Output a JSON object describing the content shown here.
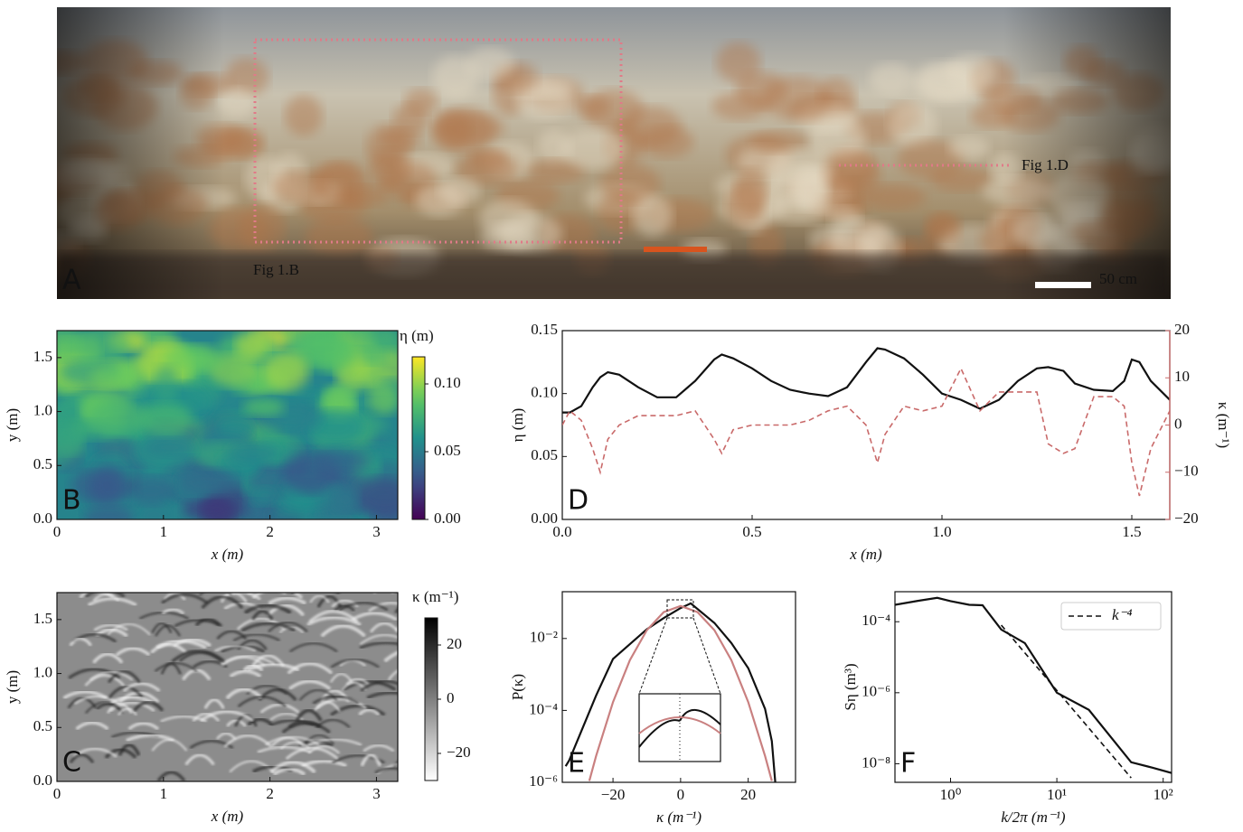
{
  "chart_data": [
    {
      "type": "image",
      "panel_label": "A",
      "annotations": [
        "Fig 1.B",
        "Fig 1.D"
      ],
      "scale_bar": "50 cm"
    },
    {
      "type": "heatmap",
      "panel_label": "B",
      "xlabel": "x (m)",
      "ylabel": "y (m)",
      "xlim": [
        0,
        3.2
      ],
      "ylim": [
        0,
        1.75
      ],
      "xticks": [
        0,
        1,
        2,
        3
      ],
      "yticks": [
        {
          "value": 0,
          "label": "0.0"
        },
        {
          "value": 0.5,
          "label": "0.5"
        },
        {
          "value": 1,
          "label": "1.0"
        },
        {
          "value": 1.5,
          "label": "1.5"
        }
      ],
      "colormap": "viridis",
      "colorbar": {
        "label": "η (m)",
        "lim": [
          0,
          0.12
        ],
        "ticks": [
          {
            "value": 0,
            "label": "0.00"
          },
          {
            "value": 0.05,
            "label": "0.05"
          },
          {
            "value": 0.1,
            "label": "0.10"
          }
        ]
      }
    },
    {
      "type": "line",
      "panel_label": "D",
      "xlabel": "x (m)",
      "ylabel": "η (m)",
      "y2label": "κ (m⁻¹)",
      "xlim": [
        0,
        1.6
      ],
      "ylim": [
        0,
        0.15
      ],
      "y2lim": [
        -20,
        20
      ],
      "xticks": [
        {
          "value": 0,
          "label": "0.0"
        },
        {
          "value": 0.5,
          "label": "0.5"
        },
        {
          "value": 1,
          "label": "1.0"
        },
        {
          "value": 1.5,
          "label": "1.5"
        }
      ],
      "yticks": [
        {
          "value": 0,
          "label": "0.00"
        },
        {
          "value": 0.05,
          "label": "0.05"
        },
        {
          "value": 0.1,
          "label": "0.10"
        },
        {
          "value": 0.15,
          "label": "0.15"
        }
      ],
      "y2ticks": [
        {
          "value": -20,
          "label": "−20"
        },
        {
          "value": -10,
          "label": "−10"
        },
        0,
        10,
        20
      ],
      "x": [
        0,
        0.02,
        0.05,
        0.08,
        0.1,
        0.12,
        0.15,
        0.2,
        0.25,
        0.3,
        0.35,
        0.4,
        0.42,
        0.45,
        0.5,
        0.55,
        0.6,
        0.65,
        0.7,
        0.75,
        0.8,
        0.83,
        0.85,
        0.9,
        0.95,
        1.0,
        1.05,
        1.1,
        1.15,
        1.2,
        1.25,
        1.28,
        1.32,
        1.35,
        1.4,
        1.45,
        1.48,
        1.5,
        1.52,
        1.55,
        1.6
      ],
      "series": [
        {
          "color": "#111111",
          "dash": "solid",
          "values": [
            0.085,
            0.085,
            0.09,
            0.105,
            0.113,
            0.117,
            0.115,
            0.105,
            0.097,
            0.097,
            0.11,
            0.127,
            0.131,
            0.128,
            0.12,
            0.11,
            0.103,
            0.1,
            0.098,
            0.105,
            0.125,
            0.136,
            0.135,
            0.128,
            0.115,
            0.1,
            0.095,
            0.088,
            0.095,
            0.11,
            0.12,
            0.121,
            0.118,
            0.108,
            0.103,
            0.102,
            0.11,
            0.127,
            0.125,
            0.11,
            0.095
          ]
        },
        {
          "color": "#c96a6a",
          "dash": "dashed",
          "axis": "y2",
          "values": [
            0,
            3,
            1,
            -5,
            -10,
            -3,
            0,
            2,
            2,
            2,
            3,
            -3,
            -6,
            -1,
            0,
            0,
            0,
            1,
            3,
            4,
            0,
            -8,
            -2,
            4,
            3,
            4,
            12,
            3,
            7,
            7,
            7,
            -4,
            -6,
            -5,
            6,
            6,
            4,
            -8,
            -15,
            -5,
            3
          ]
        }
      ]
    },
    {
      "type": "heatmap",
      "panel_label": "C",
      "xlabel": "x (m)",
      "ylabel": "y (m)",
      "xlim": [
        0,
        3.2
      ],
      "ylim": [
        0,
        1.75
      ],
      "xticks": [
        0,
        1,
        2,
        3
      ],
      "yticks": [
        {
          "value": 0,
          "label": "0.0"
        },
        {
          "value": 0.5,
          "label": "0.5"
        },
        {
          "value": 1,
          "label": "1.0"
        },
        {
          "value": 1.5,
          "label": "1.5"
        }
      ],
      "colormap": "Greys",
      "colorbar": {
        "label": "κ (m⁻¹)",
        "lim": [
          -30,
          30
        ],
        "ticks": [
          {
            "value": -20,
            "label": "−20"
          },
          0,
          20
        ]
      }
    },
    {
      "type": "line",
      "panel_label": "E",
      "xlabel": "κ (m⁻¹)",
      "ylabel": "P(κ)",
      "xlim": [
        -35,
        34
      ],
      "ylim": [
        1e-06,
        0.2
      ],
      "yscale": "log",
      "xticks": [
        {
          "value": -20,
          "label": "−20"
        },
        0,
        20
      ],
      "yticks": [
        {
          "value": 1e-06,
          "label": "10⁻⁶"
        },
        {
          "value": 0.0001,
          "label": "10⁻⁴"
        },
        {
          "value": 0.01,
          "label": "10⁻²"
        }
      ],
      "series": [
        {
          "color": "#111111",
          "dash": "solid",
          "x": [
            -34,
            -33,
            -30,
            -25,
            -20,
            -10,
            -5,
            0,
            3,
            10,
            15,
            20,
            25,
            27,
            28
          ],
          "values": [
            2.8e-06,
            4e-06,
            1.9e-05,
            0.00026,
            0.0027,
            0.018,
            0.037,
            0.07,
            0.095,
            0.027,
            0.0075,
            0.0015,
            0.00011,
            1.4e-05,
            1e-06
          ]
        },
        {
          "color": "#c98080",
          "dash": "solid",
          "x": [
            -27,
            -25,
            -20,
            -15,
            -10,
            -5,
            0,
            5,
            10,
            15,
            20,
            25,
            27
          ],
          "values": [
            1.1e-06,
            5.4e-06,
            0.00017,
            0.0025,
            0.017,
            0.054,
            0.08,
            0.054,
            0.017,
            0.0025,
            0.00017,
            5.4e-06,
            1.1e-06
          ]
        }
      ]
    },
    {
      "type": "line",
      "panel_label": "F",
      "xlabel": "k/2π (m⁻¹)",
      "ylabel": "Sη (m³)",
      "xlim": [
        0.3,
        120
      ],
      "ylim": [
        3e-09,
        0.0007
      ],
      "xscale": "log",
      "yscale": "log",
      "xticks": [
        {
          "value": 1,
          "label": "10⁰"
        },
        {
          "value": 10,
          "label": "10¹"
        },
        {
          "value": 100,
          "label": "10²"
        }
      ],
      "yticks": [
        {
          "value": 1e-08,
          "label": "10⁻⁸"
        },
        {
          "value": 1e-06,
          "label": "10⁻⁶"
        },
        {
          "value": 0.0001,
          "label": "10⁻⁴"
        }
      ],
      "legend": "upper right",
      "series": [
        {
          "color": "#111111",
          "dash": "solid",
          "x": [
            0.3,
            0.5,
            0.75,
            1,
            1.5,
            2,
            3,
            5,
            10,
            20,
            50,
            80,
            120
          ],
          "values": [
            0.0003,
            0.00039,
            0.00047,
            0.00038,
            0.0003,
            0.00029,
            6e-05,
            2.5e-05,
            1e-06,
            3.3e-07,
            1.1e-08,
            7.7e-09,
            5.5e-09
          ]
        },
        {
          "name": "k⁻⁴",
          "color": "#111111",
          "dash": "dashed",
          "x": [
            3,
            50
          ],
          "values": [
            8e-05,
            4e-09
          ]
        }
      ]
    }
  ]
}
